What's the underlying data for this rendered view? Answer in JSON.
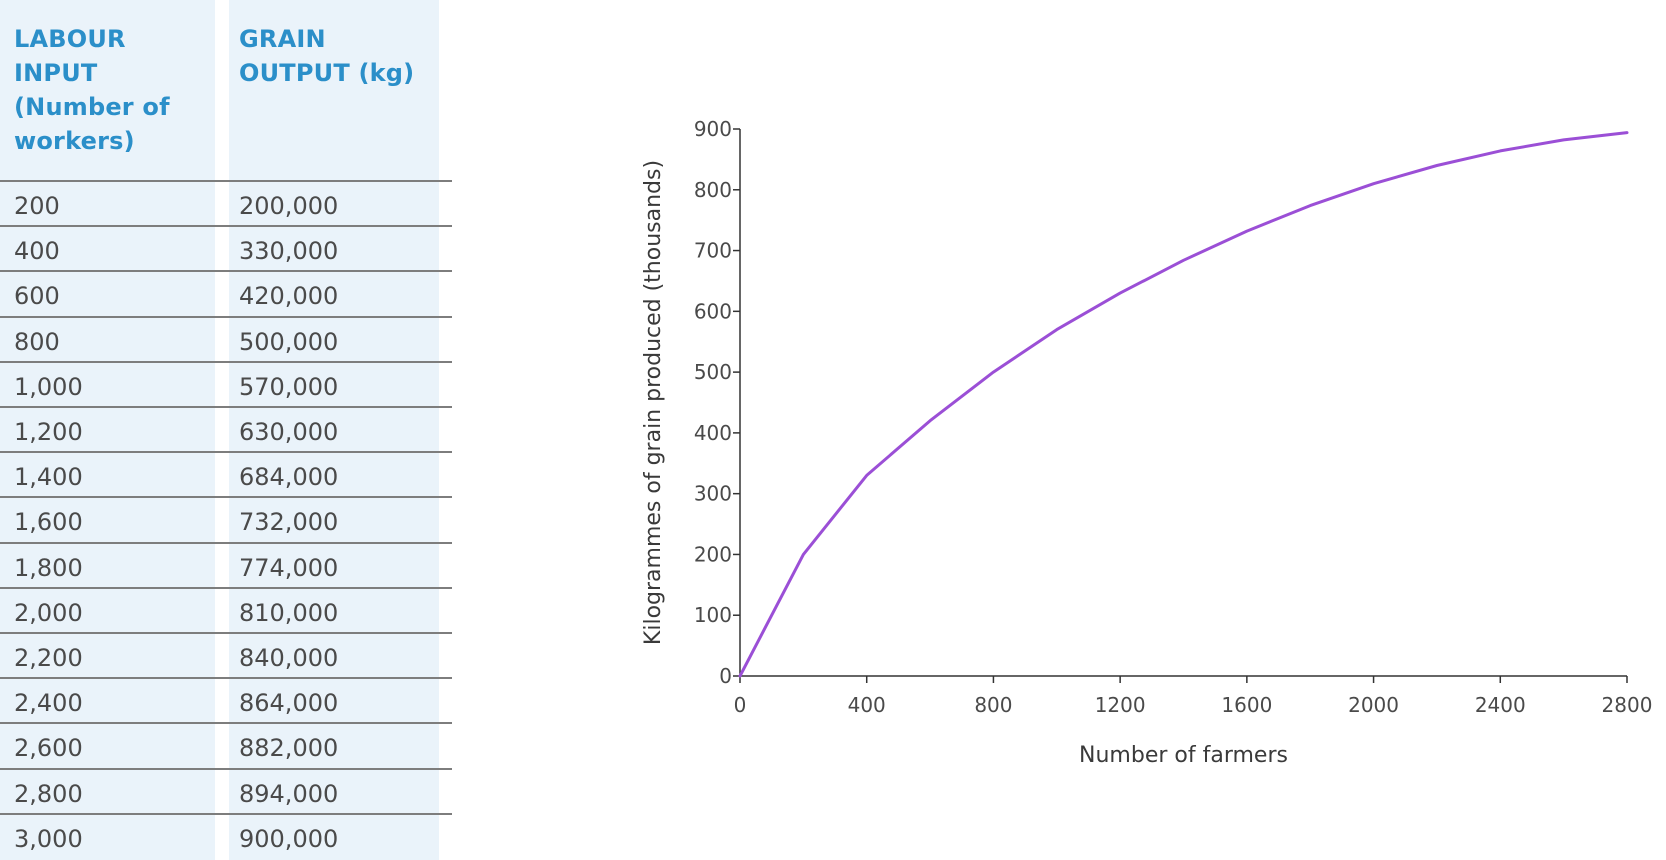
{
  "table": {
    "headers": [
      "LABOUR INPUT (Number of workers)",
      "GRAIN OUTPUT (kg)"
    ],
    "rows": [
      [
        "200",
        "200,000"
      ],
      [
        "400",
        "330,000"
      ],
      [
        "600",
        "420,000"
      ],
      [
        "800",
        "500,000"
      ],
      [
        "1,000",
        "570,000"
      ],
      [
        "1,200",
        "630,000"
      ],
      [
        "1,400",
        "684,000"
      ],
      [
        "1,600",
        "732,000"
      ],
      [
        "1,800",
        "774,000"
      ],
      [
        "2,000",
        "810,000"
      ],
      [
        "2,200",
        "840,000"
      ],
      [
        "2,400",
        "864,000"
      ],
      [
        "2,600",
        "882,000"
      ],
      [
        "2,800",
        "894,000"
      ],
      [
        "3,000",
        "900,000"
      ]
    ],
    "header_color": "#2b8fc9",
    "column_fill": "#eaf3fa"
  },
  "chart_data": {
    "type": "line",
    "title": "",
    "xlabel": "Number of farmers",
    "ylabel": "Kilogrammes of grain produced (thousands)",
    "xlim": [
      0,
      2800
    ],
    "ylim": [
      0,
      900
    ],
    "xticks": [
      0,
      400,
      800,
      1200,
      1600,
      2000,
      2400,
      2800
    ],
    "yticks": [
      0,
      100,
      200,
      300,
      400,
      500,
      600,
      700,
      800,
      900
    ],
    "grid": false,
    "line_color": "#9b4fd6",
    "series": [
      {
        "x": [
          0,
          200,
          400,
          600,
          800,
          1000,
          1200,
          1400,
          1600,
          1800,
          2000,
          2200,
          2400,
          2600,
          2800
        ],
        "y": [
          0,
          200,
          330,
          420,
          500,
          570,
          630,
          684,
          732,
          774,
          810,
          840,
          864,
          882,
          894
        ]
      }
    ]
  }
}
